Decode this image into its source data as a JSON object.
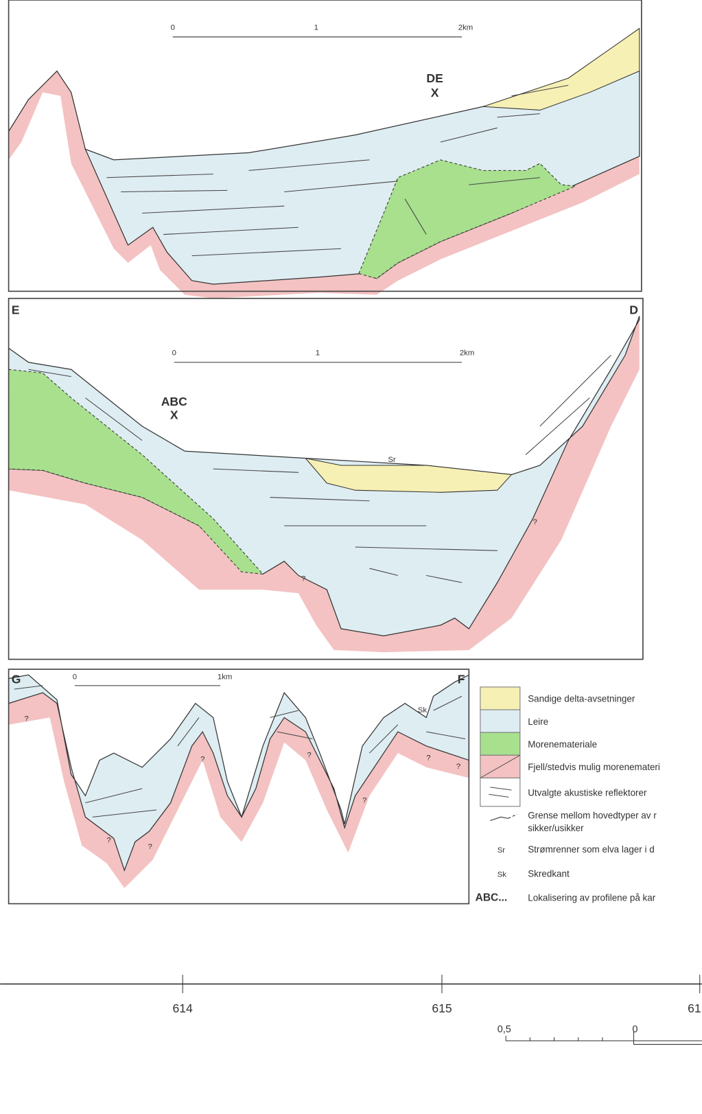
{
  "profile_1": {
    "scale": [
      "0",
      "1",
      "2km"
    ],
    "location": {
      "code": "DE",
      "mark": "X"
    }
  },
  "profile_2": {
    "start": "E",
    "end": "D",
    "scale": [
      "0",
      "1",
      "2km"
    ],
    "location": {
      "code": "ABC",
      "mark": "X"
    },
    "annotations": [
      "Sr",
      "?",
      "?"
    ]
  },
  "profile_3": {
    "start": "G",
    "end": "F",
    "scale": [
      "0",
      "1km"
    ],
    "annotations": [
      "Sk",
      "?",
      "?",
      "?",
      "?",
      "?",
      "?",
      "?",
      "?"
    ]
  },
  "legend": [
    {
      "label": "Sandige delta-avsetninger"
    },
    {
      "label": "Leire"
    },
    {
      "label": "Morenemateriale"
    },
    {
      "label": "Fjell/stedvis mulig morenemateri"
    },
    {
      "label": "Utvalgte akustiske reflektorer"
    },
    {
      "label": "Grense mellom hovedtyper av r",
      "sublabel": "sikker/usikker"
    },
    {
      "symbol": "Sr",
      "label": "Strømrenner som elva lager i d"
    },
    {
      "symbol": "Sk",
      "label": "Skredkant"
    },
    {
      "symbol": "ABC...",
      "label": "Lokalisering av profilene på kar"
    }
  ],
  "map_axis": {
    "labels": [
      "614",
      "615",
      "61"
    ]
  },
  "map_scale": [
    "0,5",
    "0"
  ]
}
